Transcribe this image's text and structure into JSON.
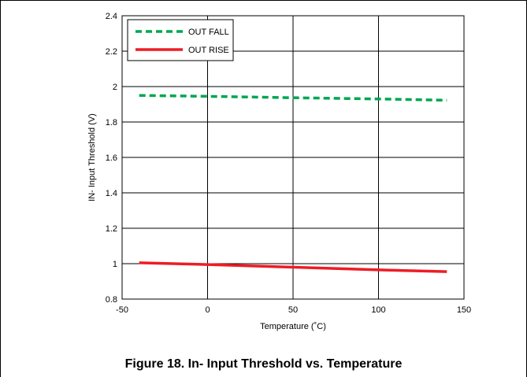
{
  "caption": "Figure 18. In- Input Threshold vs. Temperature",
  "chart_data": {
    "type": "line",
    "title": "",
    "xlabel": "Temperature (˚C)",
    "ylabel": "IN- Input Threshold (V)",
    "xlim": [
      -50,
      150
    ],
    "ylim": [
      0.8,
      2.4
    ],
    "xticks": [
      -50,
      0,
      50,
      100,
      150
    ],
    "yticks": [
      0.8,
      1,
      1.2,
      1.4,
      1.6,
      1.8,
      2,
      2.2,
      2.4
    ],
    "xtick_labels": [
      "-50",
      "0",
      "50",
      "100",
      "150"
    ],
    "ytick_labels": [
      "0.8",
      "1",
      "1.2",
      "1.4",
      "1.6",
      "1.8",
      "2",
      "2.2",
      "2.4"
    ],
    "grid": true,
    "legend_position": "top-left",
    "series": [
      {
        "name": "OUT FALL",
        "color": "#00a651",
        "style": "dashed",
        "x": [
          -40,
          0,
          50,
          100,
          140
        ],
        "y": [
          1.95,
          1.945,
          1.937,
          1.93,
          1.923
        ]
      },
      {
        "name": "OUT RISE",
        "color": "#ee1c25",
        "style": "solid",
        "x": [
          -40,
          0,
          50,
          100,
          140
        ],
        "y": [
          1.005,
          0.995,
          0.98,
          0.965,
          0.955
        ]
      }
    ]
  }
}
